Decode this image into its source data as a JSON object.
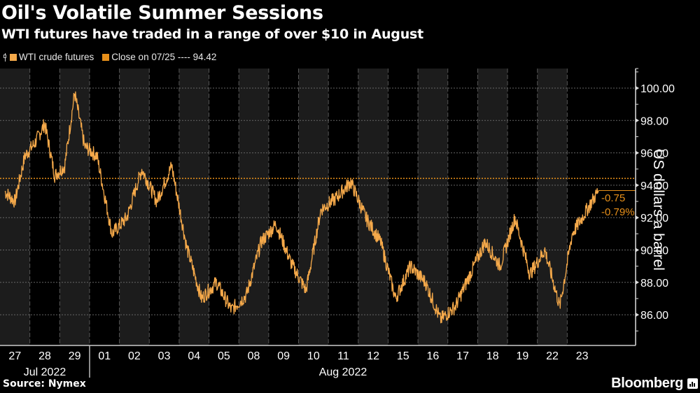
{
  "header": {
    "title": "Oil's Volatile Summer Sessions",
    "subtitle": "WTI futures have traded in a range of over $10 in August"
  },
  "legend": {
    "series_label": "WTI crude futures",
    "reference_label": "Close on 07/25 ---- 94.42"
  },
  "annotations": {
    "change_abs": "-0.75",
    "change_pct": "-0.79%"
  },
  "footer": {
    "source": "Source: Nymex",
    "brand": "Bloomberg"
  },
  "colors": {
    "series": "#f5a94a",
    "reference": "#e8901a",
    "band_gray": "#1c1c1c",
    "background": "#000000"
  },
  "chart_data": {
    "type": "line",
    "title": "Oil's Volatile Summer Sessions",
    "subtitle": "WTI futures have traded in a range of over $10 in August",
    "xlabel": "",
    "ylabel": "US dollars a barrel",
    "ylim": [
      84.5,
      101
    ],
    "yticks": [
      86,
      88,
      90,
      92,
      94,
      96,
      98,
      100
    ],
    "ytick_labels": [
      "86.00",
      "88.00",
      "90.00",
      "92.00",
      "94.00",
      "96.00",
      "98.00",
      "100.00"
    ],
    "x_tick_labels": [
      "27",
      "28",
      "29",
      "01",
      "02",
      "03",
      "04",
      "05",
      "08",
      "09",
      "10",
      "11",
      "12",
      "15",
      "16",
      "17",
      "18",
      "19",
      "22",
      "23"
    ],
    "x_group_labels": [
      {
        "label": "Jul 2022",
        "days": [
          "27",
          "28",
          "29"
        ]
      },
      {
        "label": "Aug 2022",
        "days": [
          "01",
          "02",
          "03",
          "04",
          "05",
          "08",
          "09",
          "10",
          "11",
          "12",
          "15",
          "16",
          "17",
          "18",
          "19",
          "22",
          "23"
        ]
      }
    ],
    "grid": true,
    "legend_position": "top-left",
    "reference_line": {
      "label": "Close on 07/25",
      "value": 94.42
    },
    "last_value_annotation": {
      "change": -0.75,
      "change_pct": -0.79
    },
    "series": [
      {
        "name": "WTI crude futures",
        "x": [
          "07-27",
          "07-27",
          "07-27",
          "07-28",
          "07-28",
          "07-28",
          "07-29",
          "07-29",
          "07-29",
          "08-01",
          "08-01",
          "08-02",
          "08-02",
          "08-03",
          "08-03",
          "08-04",
          "08-04",
          "08-05",
          "08-05",
          "08-08",
          "08-08",
          "08-09",
          "08-09",
          "08-10",
          "08-10",
          "08-11",
          "08-11",
          "08-12",
          "08-12",
          "08-15",
          "08-15",
          "08-16",
          "08-16",
          "08-17",
          "08-17",
          "08-18",
          "08-18",
          "08-19",
          "08-19",
          "08-22",
          "08-22",
          "08-23",
          "08-23",
          "08-23"
        ],
        "values": [
          93.6,
          93.0,
          95.8,
          96.6,
          97.8,
          94.6,
          95.2,
          99.7,
          96.4,
          95.8,
          91.0,
          92.0,
          95.0,
          93.0,
          95.2,
          90.2,
          87.0,
          88.0,
          86.3,
          87.2,
          90.5,
          91.6,
          89.2,
          87.5,
          92.5,
          93.2,
          94.2,
          92.0,
          90.5,
          87.0,
          89.0,
          88.0,
          85.7,
          86.5,
          88.5,
          90.5,
          89.0,
          92.0,
          88.5,
          90.0,
          86.5,
          91.0,
          92.0,
          93.67
        ]
      }
    ]
  }
}
